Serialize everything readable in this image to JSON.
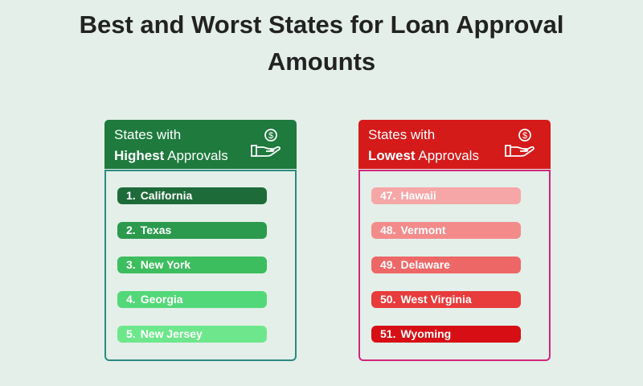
{
  "title": "Best and Worst States for Loan Approval Amounts",
  "panels": [
    {
      "header_line1": "States with",
      "header_bold": "Highest",
      "header_rest": "Approvals",
      "items": [
        {
          "rank": "1.",
          "name": "California"
        },
        {
          "rank": "2.",
          "name": "Texas"
        },
        {
          "rank": "3.",
          "name": "New York"
        },
        {
          "rank": "4.",
          "name": "Georgia"
        },
        {
          "rank": "5.",
          "name": "New Jersey"
        }
      ]
    },
    {
      "header_line1": "States with",
      "header_bold": "Lowest",
      "header_rest": "Approvals",
      "items": [
        {
          "rank": "47.",
          "name": "Hawaii"
        },
        {
          "rank": "48.",
          "name": "Vermont"
        },
        {
          "rank": "49.",
          "name": "Delaware"
        },
        {
          "rank": "50.",
          "name": "West Virginia"
        },
        {
          "rank": "51.",
          "name": "Wyoming"
        }
      ]
    }
  ]
}
